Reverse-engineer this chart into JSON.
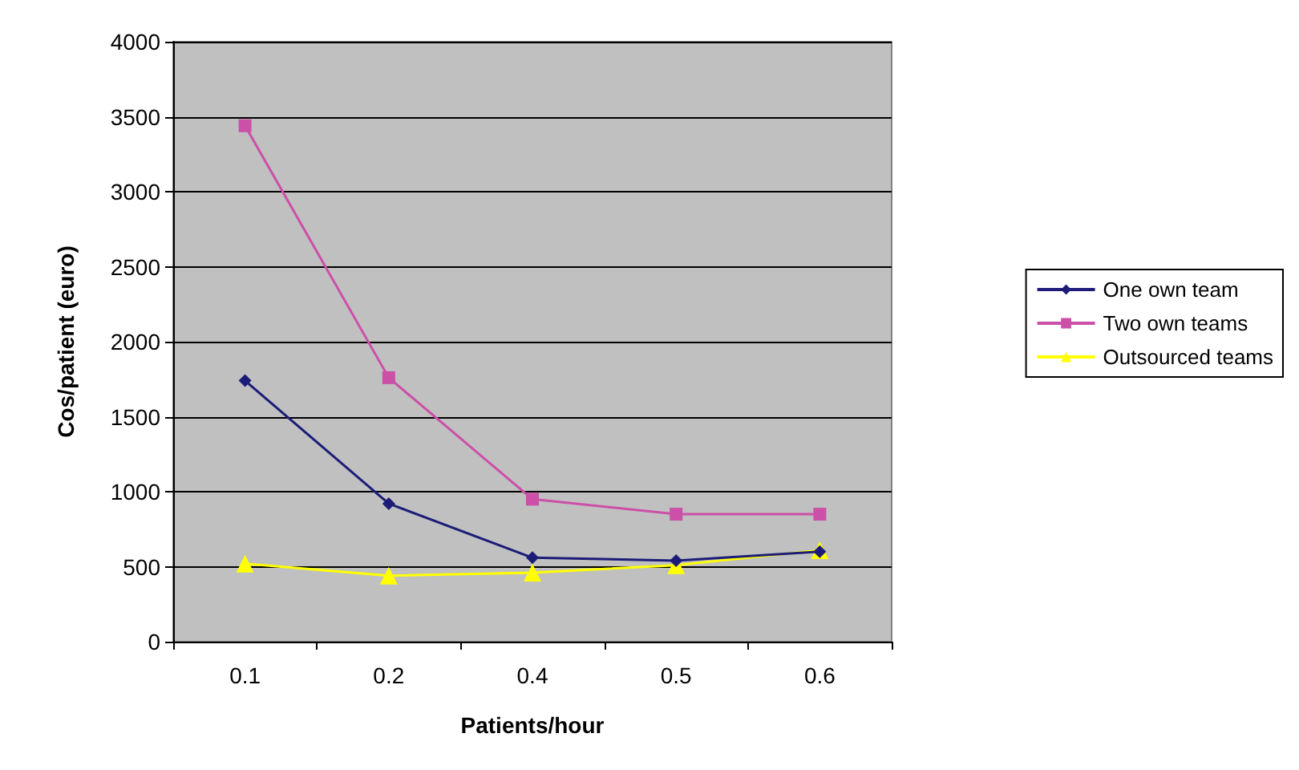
{
  "chart_data": {
    "type": "line",
    "xlabel": "Patients/hour",
    "ylabel": "Cos/patient (euro)",
    "categories": [
      "0.1",
      "0.2",
      "0.4",
      "0.5",
      "0.6"
    ],
    "series": [
      {
        "name": "One own team",
        "color": "#1c1c78",
        "marker": "diamond",
        "values": [
          1740,
          920,
          560,
          540,
          600
        ]
      },
      {
        "name": "Two own teams",
        "color": "#cc4fa8",
        "marker": "square",
        "values": [
          3440,
          1760,
          950,
          850,
          850
        ]
      },
      {
        "name": "Outsourced teams",
        "color": "#ffff00",
        "marker": "triangle",
        "values": [
          520,
          440,
          460,
          510,
          610
        ]
      }
    ],
    "ylim": [
      0,
      4000
    ],
    "yticks": [
      0,
      500,
      1000,
      1500,
      2000,
      2500,
      3000,
      3500,
      4000
    ],
    "grid": "y",
    "legend": "right"
  }
}
